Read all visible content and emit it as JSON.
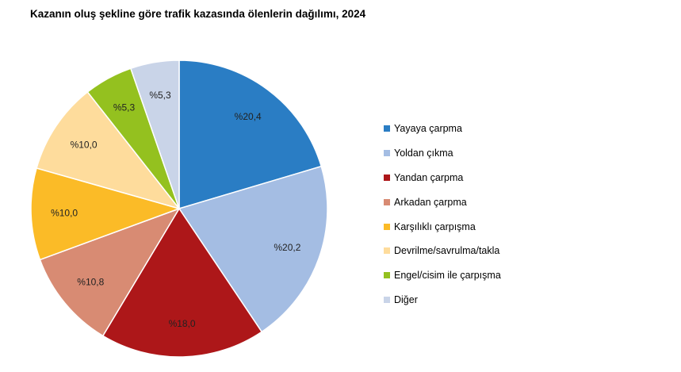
{
  "chart_data": {
    "type": "pie",
    "title": "Kazanın oluş şekline göre trafik kazasında ölenlerin dağılımı, 2024",
    "categories": [
      "Yayaya çarpma",
      "Yoldan çıkma",
      "Yandan çarpma",
      "Arkadan çarpma",
      "Karşılıklı çarpışma",
      "Devrilme/savrulma/takla",
      "Engel/cisim ile çarpışma",
      "Diğer"
    ],
    "values": [
      20.4,
      20.2,
      18.0,
      10.8,
      10.0,
      10.0,
      5.3,
      5.3
    ],
    "data_labels": [
      "%20,4",
      "%20,2",
      "%18,0",
      "%10,8",
      "%10,0",
      "%10,0",
      "%5,3",
      "%5,3"
    ],
    "colors": [
      "#2a7dc4",
      "#a4bde3",
      "#ad1719",
      "#d88b73",
      "#fbbb27",
      "#fedc9c",
      "#94c11f",
      "#c9d4e8"
    ],
    "legend_position": "right"
  }
}
